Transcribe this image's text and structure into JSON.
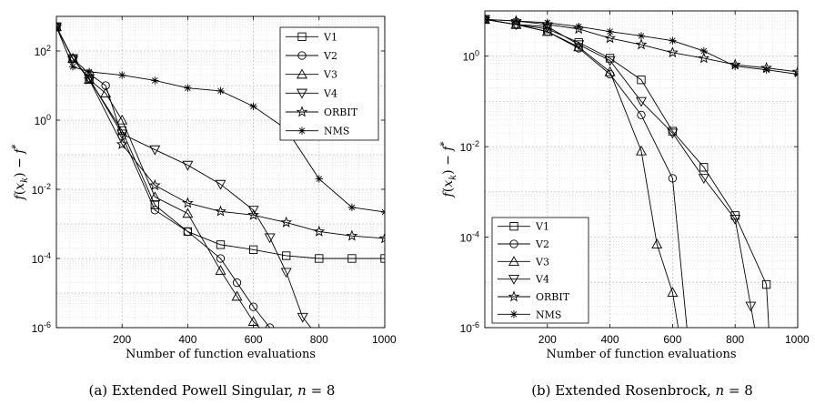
{
  "chart_data": [
    {
      "type": "line",
      "title": "",
      "caption": "(a) Extended Powell Singular, n = 8",
      "caption_parts": {
        "prefix": "(a) Extended Powell Singular,",
        "n": "n",
        "eq": " = 8"
      },
      "xlabel": "Number of function evaluations",
      "ylabel": "f(x_k) − f*",
      "ylabel_parts": {
        "f": "f",
        "open": "(",
        "x": "x",
        "k": "k",
        "close": ") − ",
        "f2": "f",
        "star": "*"
      },
      "xlim": [
        0,
        1000
      ],
      "ylim": [
        1e-06,
        1000
      ],
      "yscale": "log",
      "grid": true,
      "legend_position": "top-right",
      "x_ticks": [
        200,
        400,
        600,
        800,
        1000
      ],
      "x_tick_labels": [
        "200",
        "400",
        "600",
        "800",
        "1000"
      ],
      "y_ticks": [
        1e-06,
        0.0001,
        0.01,
        1,
        100
      ],
      "y_tick_labels": [
        {
          "b": "10",
          "e": "-6"
        },
        {
          "b": "10",
          "e": "-4"
        },
        {
          "b": "10",
          "e": "-2"
        },
        {
          "b": "10",
          "e": "0"
        },
        {
          "b": "10",
          "e": "2"
        }
      ],
      "series": [
        {
          "name": "V1",
          "marker": "square",
          "points": [
            [
              0,
              500
            ],
            [
              50,
              60
            ],
            [
              100,
              15
            ],
            [
              200,
              0.5
            ],
            [
              300,
              0.0035
            ],
            [
              400,
              0.0006
            ],
            [
              500,
              0.00025
            ],
            [
              600,
              0.00018
            ],
            [
              700,
              0.00012
            ],
            [
              800,
              0.0001
            ],
            [
              900,
              0.0001
            ],
            [
              1000,
              0.0001
            ]
          ]
        },
        {
          "name": "V2",
          "marker": "circle",
          "points": [
            [
              0,
              500
            ],
            [
              50,
              60
            ],
            [
              100,
              22
            ],
            [
              150,
              10
            ],
            [
              200,
              0.35
            ],
            [
              300,
              0.0025
            ],
            [
              400,
              0.0006
            ],
            [
              500,
              0.0001
            ],
            [
              550,
              2e-05
            ],
            [
              600,
              4e-06
            ],
            [
              650,
              1e-06
            ],
            [
              700,
              5e-07
            ]
          ]
        },
        {
          "name": "V3",
          "marker": "triangle-up",
          "points": [
            [
              0,
              500
            ],
            [
              50,
              60
            ],
            [
              100,
              15
            ],
            [
              150,
              6
            ],
            [
              200,
              1
            ],
            [
              300,
              0.006
            ],
            [
              400,
              0.002
            ],
            [
              500,
              4.5e-05
            ],
            [
              550,
              8e-06
            ],
            [
              600,
              1.5e-06
            ],
            [
              650,
              5e-07
            ]
          ]
        },
        {
          "name": "V4",
          "marker": "triangle-down",
          "points": [
            [
              0,
              500
            ],
            [
              50,
              60
            ],
            [
              100,
              16
            ],
            [
              200,
              0.4
            ],
            [
              300,
              0.14
            ],
            [
              400,
              0.05
            ],
            [
              500,
              0.014
            ],
            [
              600,
              0.0025
            ],
            [
              650,
              0.0004
            ],
            [
              700,
              4e-05
            ],
            [
              750,
              2e-06
            ],
            [
              800,
              5e-07
            ]
          ]
        },
        {
          "name": "ORBIT",
          "marker": "star",
          "points": [
            [
              0,
              500
            ],
            [
              50,
              60
            ],
            [
              100,
              15
            ],
            [
              200,
              0.2
            ],
            [
              300,
              0.013
            ],
            [
              400,
              0.004
            ],
            [
              500,
              0.0023
            ],
            [
              600,
              0.0018
            ],
            [
              700,
              0.0011
            ],
            [
              800,
              0.0006
            ],
            [
              900,
              0.00045
            ],
            [
              1000,
              0.00038
            ]
          ]
        },
        {
          "name": "NMS",
          "marker": "asterisk",
          "points": [
            [
              0,
              500
            ],
            [
              50,
              35
            ],
            [
              100,
              25
            ],
            [
              200,
              20
            ],
            [
              300,
              14
            ],
            [
              400,
              8.5
            ],
            [
              500,
              7
            ],
            [
              600,
              2.5
            ],
            [
              700,
              0.55
            ],
            [
              800,
              0.02
            ],
            [
              900,
              0.003
            ],
            [
              1000,
              0.0022
            ]
          ]
        }
      ]
    },
    {
      "type": "line",
      "title": "",
      "caption": "(b) Extended Rosenbrock, n = 8",
      "caption_parts": {
        "prefix": "(b) Extended Rosenbrock,",
        "n": "n",
        "eq": " = 8"
      },
      "xlabel": "Number of function evaluations",
      "ylabel": "f(x_k) − f*",
      "ylabel_parts": {
        "f": "f",
        "open": "(",
        "x": "x",
        "k": "k",
        "close": ") − ",
        "f2": "f",
        "star": "*"
      },
      "xlim": [
        0,
        1000
      ],
      "ylim": [
        1e-06,
        10
      ],
      "yscale": "log",
      "grid": true,
      "legend_position": "bottom-left",
      "x_ticks": [
        200,
        400,
        600,
        800,
        1000
      ],
      "x_tick_labels": [
        "200",
        "400",
        "600",
        "800",
        "1000"
      ],
      "y_ticks": [
        1e-06,
        0.0001,
        0.01,
        1
      ],
      "y_tick_labels": [
        {
          "b": "10",
          "e": "-6"
        },
        {
          "b": "10",
          "e": "-4"
        },
        {
          "b": "10",
          "e": "-2"
        },
        {
          "b": "10",
          "e": "0"
        }
      ],
      "series": [
        {
          "name": "V1",
          "marker": "square",
          "points": [
            [
              0,
              6.5
            ],
            [
              100,
              5
            ],
            [
              200,
              4
            ],
            [
              300,
              2
            ],
            [
              400,
              0.9
            ],
            [
              500,
              0.3
            ],
            [
              600,
              0.022
            ],
            [
              700,
              0.0035
            ],
            [
              800,
              0.0003
            ],
            [
              900,
              9e-06
            ],
            [
              910,
              5e-07
            ]
          ]
        },
        {
          "name": "V2",
          "marker": "circle",
          "points": [
            [
              0,
              6.5
            ],
            [
              100,
              5
            ],
            [
              200,
              3.5
            ],
            [
              300,
              1.5
            ],
            [
              400,
              0.4
            ],
            [
              500,
              0.05
            ],
            [
              600,
              0.002
            ],
            [
              650,
              5e-07
            ]
          ]
        },
        {
          "name": "V3",
          "marker": "triangle-up",
          "points": [
            [
              0,
              6.5
            ],
            [
              100,
              5
            ],
            [
              200,
              3.5
            ],
            [
              300,
              1.6
            ],
            [
              400,
              0.45
            ],
            [
              500,
              0.008
            ],
            [
              550,
              7e-05
            ],
            [
              600,
              6e-06
            ],
            [
              625,
              5e-07
            ]
          ]
        },
        {
          "name": "V4",
          "marker": "triangle-down",
          "points": [
            [
              0,
              6.5
            ],
            [
              100,
              5
            ],
            [
              200,
              4.5
            ],
            [
              300,
              1.8
            ],
            [
              400,
              0.8
            ],
            [
              500,
              0.1
            ],
            [
              600,
              0.02
            ],
            [
              700,
              0.002
            ],
            [
              800,
              0.00025
            ],
            [
              850,
              3e-06
            ],
            [
              870,
              5e-07
            ]
          ]
        },
        {
          "name": "ORBIT",
          "marker": "star",
          "points": [
            [
              0,
              6.5
            ],
            [
              100,
              6
            ],
            [
              200,
              5
            ],
            [
              300,
              4
            ],
            [
              400,
              2.5
            ],
            [
              500,
              1.8
            ],
            [
              600,
              1.2
            ],
            [
              700,
              0.9
            ],
            [
              800,
              0.65
            ],
            [
              900,
              0.55
            ],
            [
              1000,
              0.45
            ]
          ]
        },
        {
          "name": "NMS",
          "marker": "asterisk",
          "points": [
            [
              0,
              6.5
            ],
            [
              100,
              6
            ],
            [
              200,
              5.5
            ],
            [
              300,
              4.5
            ],
            [
              400,
              3.5
            ],
            [
              500,
              2.8
            ],
            [
              600,
              2.2
            ],
            [
              700,
              1.3
            ],
            [
              800,
              0.6
            ],
            [
              900,
              0.5
            ],
            [
              1000,
              0.4
            ]
          ]
        }
      ]
    }
  ]
}
